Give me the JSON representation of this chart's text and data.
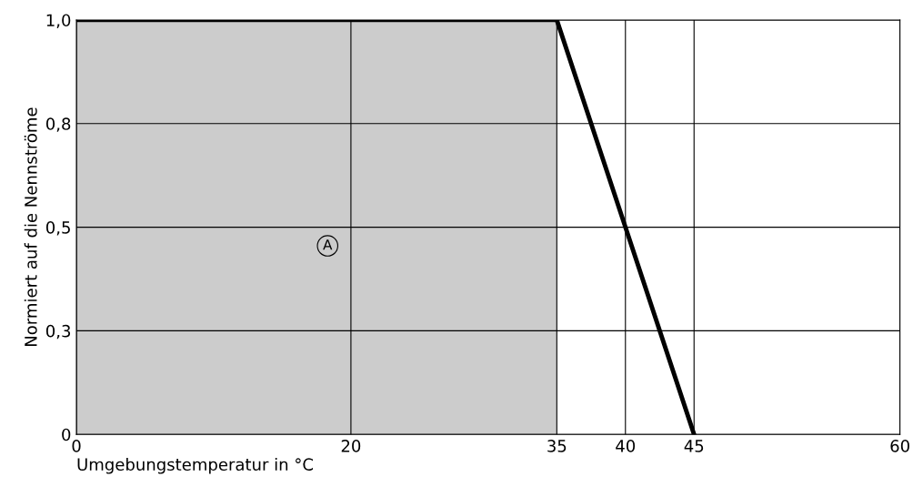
{
  "chart_data": {
    "type": "line",
    "xlabel": "Umgebungstemperatur in °C",
    "ylabel": "Normiert auf die Nennströme",
    "x": [
      0,
      35,
      45
    ],
    "series": [
      {
        "color": "#000000",
        "values": [
          1.0,
          1.0,
          0
        ]
      }
    ],
    "xlim": [
      0,
      60
    ],
    "xticks": [
      0,
      20,
      35,
      40,
      45,
      60
    ],
    "ylim": [
      0,
      1.0
    ],
    "yticks": [
      {
        "value": 0,
        "label": "0"
      },
      {
        "value": 0.25,
        "label": "0,3"
      },
      {
        "value": 0.5,
        "label": "0,5"
      },
      {
        "value": 0.75,
        "label": "0,8"
      },
      {
        "value": 1.0,
        "label": "1,0"
      }
    ],
    "bands": [
      {
        "axis": "x",
        "from": 0,
        "to": 35,
        "label": null,
        "color": "#cccccc"
      }
    ],
    "annotations": [
      "A"
    ],
    "grid": true,
    "marker": "none",
    "line_style": "solid"
  }
}
